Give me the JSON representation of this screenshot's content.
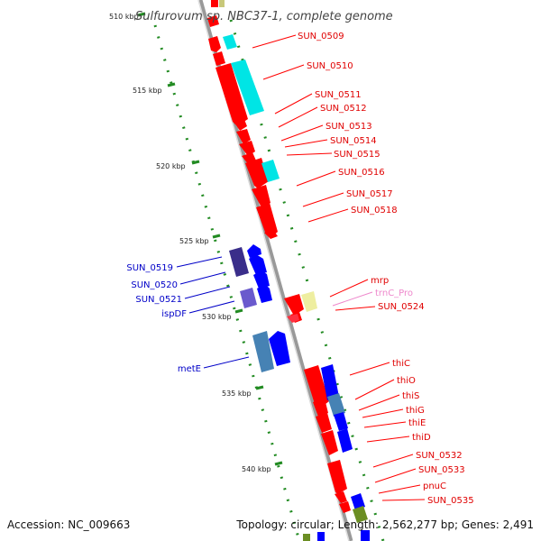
{
  "title": "Sulfurovum sp. NBC37-1, complete genome",
  "accession": "Accession: NC_009663",
  "topology": "Topology: circular; Length: 2,562,277 bp; Genes: 2,491",
  "colors": {
    "forward_gene": "#ff0000",
    "reverse_gene": "#0000ff",
    "orf_cyan": "#00e5e5",
    "rna": "#eeeea0",
    "purple": "#6a5acd",
    "steelblue": "#4682b4",
    "olive": "#6b8e23",
    "backbone": "#888888",
    "tick_green": "#228b22"
  },
  "scale_ticks": [
    "510 kbp",
    "515 kbp",
    "520 kbp",
    "525 kbp",
    "530 kbp",
    "535 kbp",
    "540 kbp"
  ],
  "genes_right": [
    {
      "label": "SUN_0509",
      "color": "red"
    },
    {
      "label": "SUN_0510",
      "color": "red"
    },
    {
      "label": "SUN_0511",
      "color": "red"
    },
    {
      "label": "SUN_0512",
      "color": "red"
    },
    {
      "label": "SUN_0513",
      "color": "red"
    },
    {
      "label": "SUN_0514",
      "color": "red"
    },
    {
      "label": "SUN_0515",
      "color": "red"
    },
    {
      "label": "SUN_0516",
      "color": "red"
    },
    {
      "label": "SUN_0517",
      "color": "red"
    },
    {
      "label": "SUN_0518",
      "color": "red"
    },
    {
      "label": "mrp",
      "color": "red"
    },
    {
      "label": "trnC_Pro",
      "color": "pink"
    },
    {
      "label": "SUN_0524",
      "color": "red"
    },
    {
      "label": "thiC",
      "color": "red"
    },
    {
      "label": "thiO",
      "color": "red"
    },
    {
      "label": "thiS",
      "color": "red"
    },
    {
      "label": "thiG",
      "color": "red"
    },
    {
      "label": "thiE",
      "color": "red"
    },
    {
      "label": "thiD",
      "color": "red"
    },
    {
      "label": "SUN_0532",
      "color": "red"
    },
    {
      "label": "SUN_0533",
      "color": "red"
    },
    {
      "label": "pnuC",
      "color": "red"
    },
    {
      "label": "SUN_0535",
      "color": "red"
    }
  ],
  "genes_left": [
    {
      "label": "SUN_0519",
      "color": "blue"
    },
    {
      "label": "SUN_0520",
      "color": "blue"
    },
    {
      "label": "SUN_0521",
      "color": "blue"
    },
    {
      "label": "ispDF",
      "color": "blue"
    },
    {
      "label": "metE",
      "color": "blue"
    }
  ]
}
